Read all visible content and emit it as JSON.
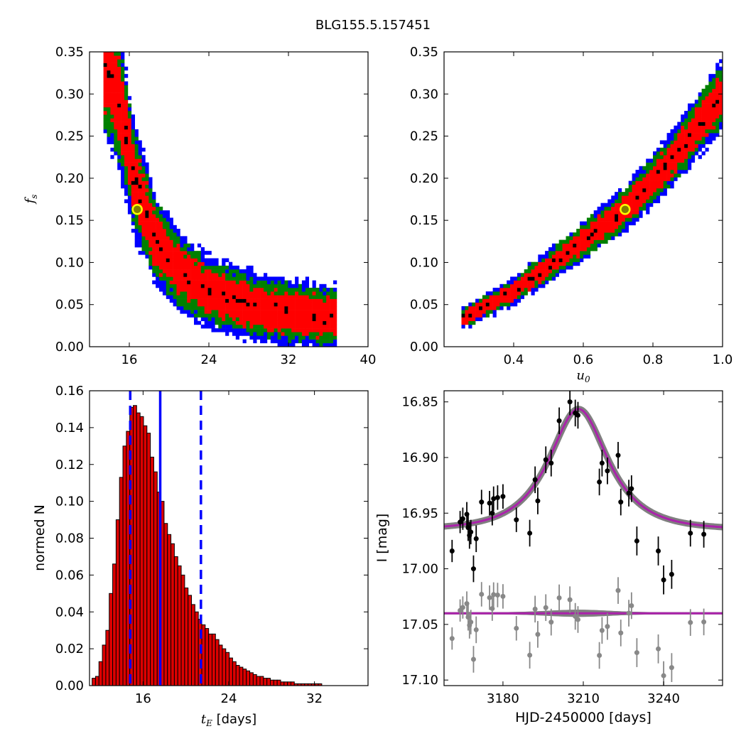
{
  "figure": {
    "title": "BLG155.5.157451"
  },
  "colors": {
    "sigma1": "#ff0000",
    "sigma2": "#008000",
    "sigma3": "#0000ff",
    "peak": "#000000",
    "marker_fill": "#808000",
    "marker_edge": "#ffff00",
    "hist_bar": "#dd0000",
    "hist_line": "#0000ff",
    "model": "#aa22aa",
    "model_band": "#808080",
    "data": "#000000",
    "residual": "#888888"
  },
  "chart_data": [
    {
      "id": "tE_vs_fs",
      "type": "heatmap",
      "title": "",
      "xlabel": "",
      "ylabel": "f_s",
      "xlim": [
        12,
        40
      ],
      "ylim": [
        0.0,
        0.35
      ],
      "xticks": [
        "16",
        "24",
        "32",
        "40"
      ],
      "yticks": [
        "0.00",
        "0.05",
        "0.10",
        "0.15",
        "0.20",
        "0.25",
        "0.30",
        "0.35"
      ],
      "ridge": [
        [
          13.5,
          0.34
        ],
        [
          15,
          0.29
        ],
        [
          16.5,
          0.2
        ],
        [
          18.5,
          0.13
        ],
        [
          21,
          0.09
        ],
        [
          24,
          0.065
        ],
        [
          28,
          0.05
        ],
        [
          32,
          0.04
        ],
        [
          37,
          0.035
        ]
      ],
      "best_fit": {
        "x": 16.8,
        "y": 0.163
      },
      "levels": [
        "1-sigma",
        "2-sigma",
        "3-sigma"
      ]
    },
    {
      "id": "u0_vs_fs",
      "type": "heatmap",
      "title": "",
      "xlabel": "u_0",
      "ylabel": "",
      "xlim": [
        0.2,
        1.0
      ],
      "ylim": [
        0.0,
        0.35
      ],
      "xticks": [
        "0.4",
        "0.6",
        "0.8",
        "1.0"
      ],
      "yticks": [
        "0.00",
        "0.05",
        "0.10",
        "0.15",
        "0.20",
        "0.25",
        "0.30",
        "0.35"
      ],
      "ridge": [
        [
          0.26,
          0.035
        ],
        [
          0.4,
          0.066
        ],
        [
          0.55,
          0.11
        ],
        [
          0.72,
          0.163
        ],
        [
          0.85,
          0.22
        ],
        [
          1.0,
          0.3
        ]
      ],
      "best_fit": {
        "x": 0.72,
        "y": 0.163
      },
      "levels": [
        "1-sigma",
        "2-sigma",
        "3-sigma"
      ]
    },
    {
      "id": "tE_histogram",
      "type": "bar",
      "title": "",
      "xlabel": "t_E [days]",
      "ylabel": "normed N",
      "xlim": [
        11,
        37
      ],
      "ylim": [
        0.0,
        0.16
      ],
      "xticks": [
        "16",
        "24",
        "32"
      ],
      "yticks": [
        "0.00",
        "0.02",
        "0.04",
        "0.06",
        "0.08",
        "0.10",
        "0.12",
        "0.14",
        "0.16"
      ],
      "bin_width": 0.32,
      "bin_start": 11.24,
      "values": [
        0.004,
        0.005,
        0.013,
        0.022,
        0.03,
        0.05,
        0.066,
        0.09,
        0.113,
        0.13,
        0.138,
        0.151,
        0.152,
        0.148,
        0.146,
        0.141,
        0.137,
        0.124,
        0.116,
        0.105,
        0.1,
        0.088,
        0.082,
        0.077,
        0.07,
        0.065,
        0.06,
        0.053,
        0.049,
        0.044,
        0.04,
        0.036,
        0.033,
        0.031,
        0.028,
        0.028,
        0.025,
        0.022,
        0.02,
        0.018,
        0.015,
        0.013,
        0.011,
        0.01,
        0.009,
        0.008,
        0.007,
        0.006,
        0.005,
        0.005,
        0.004,
        0.004,
        0.003,
        0.003,
        0.003,
        0.002,
        0.002,
        0.002,
        0.002,
        0.001,
        0.001,
        0.001,
        0.001,
        0.001,
        0.001,
        0.001,
        0.001
      ],
      "vlines": [
        {
          "x": 14.8,
          "style": "dashed"
        },
        {
          "x": 17.6,
          "style": "solid"
        },
        {
          "x": 21.4,
          "style": "dashed"
        }
      ]
    },
    {
      "id": "light_curve",
      "type": "scatter",
      "title": "",
      "xlabel": "HJD-2450000 [days]",
      "ylabel": "I [mag]",
      "xlim": [
        3158,
        3262
      ],
      "ylim": [
        17.105,
        16.84
      ],
      "xticks": [
        "3180",
        "3210",
        "3240"
      ],
      "yticks": [
        "16.85",
        "16.90",
        "16.95",
        "17.00",
        "17.05",
        "17.10"
      ],
      "model": {
        "t0": 3208.2,
        "tE": 17.3,
        "u0": 0.72,
        "fs": 0.163,
        "I_base": 16.965
      },
      "residual_offset": 17.04,
      "points": [
        [
          3161,
          16.984,
          0.01
        ],
        [
          3164,
          16.958,
          0.01
        ],
        [
          3165,
          16.955,
          0.01
        ],
        [
          3166.5,
          16.951,
          0.011
        ],
        [
          3167,
          16.963,
          0.012
        ],
        [
          3167.5,
          16.97,
          0.012
        ],
        [
          3168,
          16.967,
          0.011
        ],
        [
          3169,
          17.0,
          0.012
        ],
        [
          3170,
          16.973,
          0.012
        ],
        [
          3172,
          16.94,
          0.011
        ],
        [
          3175,
          16.941,
          0.011
        ],
        [
          3176,
          16.95,
          0.011
        ],
        [
          3176.5,
          16.937,
          0.011
        ],
        [
          3178,
          16.936,
          0.011
        ],
        [
          3180,
          16.935,
          0.011
        ],
        [
          3185,
          16.956,
          0.011
        ],
        [
          3190,
          16.968,
          0.012
        ],
        [
          3192,
          16.92,
          0.012
        ],
        [
          3193,
          16.939,
          0.012
        ],
        [
          3196,
          16.902,
          0.012
        ],
        [
          3198,
          16.905,
          0.012
        ],
        [
          3201,
          16.867,
          0.012
        ],
        [
          3205,
          16.85,
          0.012
        ],
        [
          3207,
          16.86,
          0.012
        ],
        [
          3208,
          16.862,
          0.012
        ],
        [
          3216,
          16.922,
          0.012
        ],
        [
          3217,
          16.905,
          0.012
        ],
        [
          3219,
          16.912,
          0.012
        ],
        [
          3223,
          16.898,
          0.012
        ],
        [
          3224,
          16.94,
          0.012
        ],
        [
          3227,
          16.932,
          0.012
        ],
        [
          3228,
          16.928,
          0.012
        ],
        [
          3230,
          16.975,
          0.013
        ],
        [
          3238,
          16.984,
          0.013
        ],
        [
          3240,
          17.01,
          0.013
        ],
        [
          3243,
          17.005,
          0.013
        ],
        [
          3250,
          16.968,
          0.012
        ],
        [
          3255,
          16.969,
          0.012
        ]
      ]
    }
  ]
}
